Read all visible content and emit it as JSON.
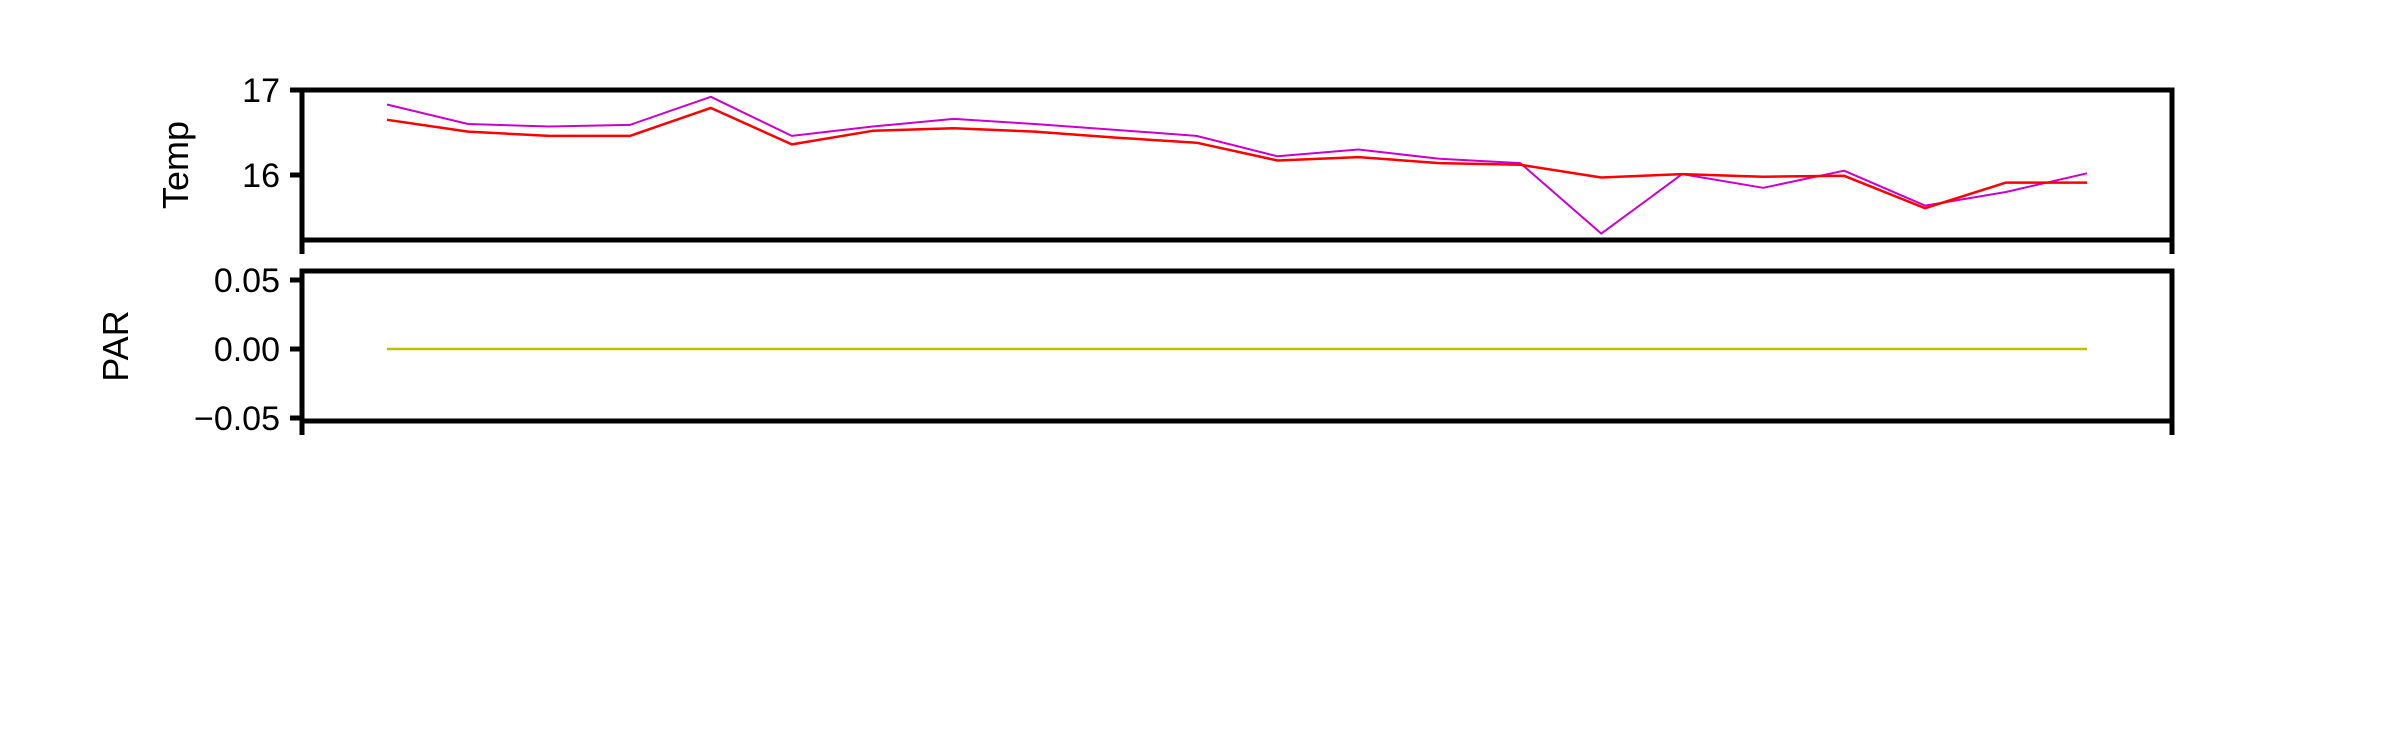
{
  "chart_data": [
    {
      "type": "line",
      "title": "",
      "xlabel": "",
      "ylabel": "Temp",
      "ylim": [
        15.2,
        17
      ],
      "yticks": [
        {
          "value": 17,
          "label": "17"
        },
        {
          "value": 16,
          "label": "16"
        }
      ],
      "x": [
        0,
        1,
        2,
        3,
        4,
        5,
        6,
        7,
        8,
        9,
        10,
        11,
        12,
        13,
        14,
        15,
        16,
        17,
        18,
        19,
        20,
        21
      ],
      "series": [
        {
          "color": "#cc00cc",
          "values": [
            16.83,
            16.6,
            16.57,
            16.59,
            16.92,
            16.46,
            16.57,
            16.66,
            16.6,
            16.53,
            16.46,
            16.22,
            16.3,
            16.19,
            16.14,
            15.31,
            16.01,
            15.85,
            16.05,
            15.64,
            15.8,
            16.02
          ]
        },
        {
          "color": "#ff0000",
          "values": [
            16.65,
            16.51,
            16.46,
            16.46,
            16.79,
            16.36,
            16.52,
            16.55,
            16.51,
            16.44,
            16.38,
            16.17,
            16.21,
            16.14,
            16.12,
            15.97,
            16.01,
            15.98,
            15.99,
            15.61,
            15.91,
            15.91
          ]
        }
      ]
    },
    {
      "type": "line",
      "title": "",
      "xlabel": "",
      "ylabel": "PAR",
      "ylim": [
        -0.055,
        0.055
      ],
      "yticks": [
        {
          "value": 0.05,
          "label": "0.05"
        },
        {
          "value": 0.0,
          "label": "0.00"
        },
        {
          "value": -0.05,
          "label": "−0.05"
        }
      ],
      "x": [
        0,
        1,
        2,
        3,
        4,
        5,
        6,
        7,
        8,
        9,
        10,
        11,
        12,
        13,
        14,
        15,
        16,
        17,
        18,
        19,
        20,
        21
      ],
      "series": [
        {
          "color": "#bfbf00",
          "values": [
            0,
            0,
            0,
            0,
            0,
            0,
            0,
            0,
            0,
            0,
            0,
            0,
            0,
            0,
            0,
            0,
            0,
            0,
            0,
            0,
            0,
            0
          ]
        }
      ]
    }
  ]
}
